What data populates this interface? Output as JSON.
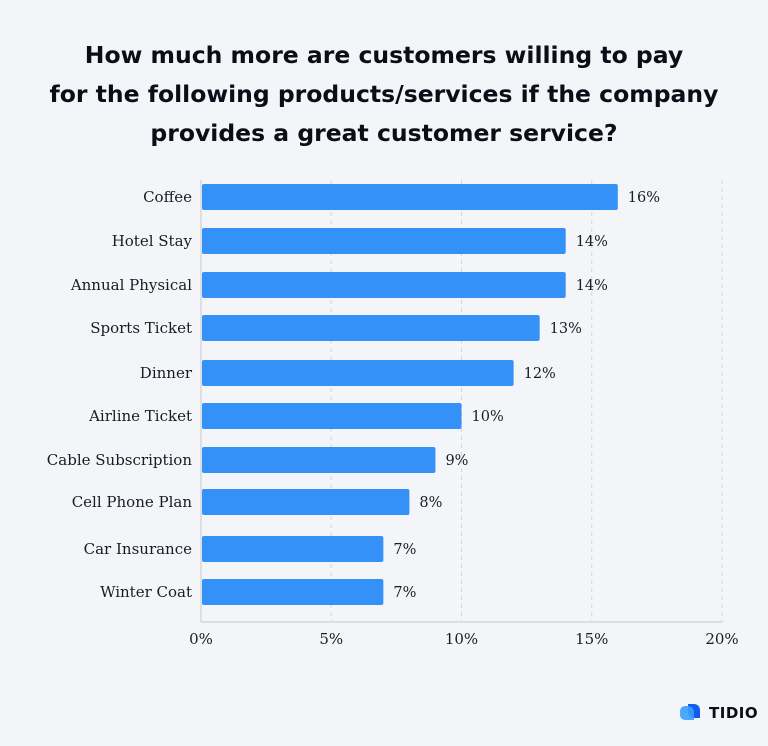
{
  "chart_data": {
    "type": "bar",
    "orientation": "horizontal",
    "title_lines": [
      "How much more are customers willing to pay",
      "for the following products/services if the company",
      "provides a great customer service?"
    ],
    "categories": [
      "Coffee",
      "Hotel Stay",
      "Annual Physical",
      "Sports Ticket",
      "Dinner",
      "Airline Ticket",
      "Cable Subscription",
      "Cell Phone Plan",
      "Car Insurance",
      "Winter Coat"
    ],
    "values": [
      16,
      14,
      14,
      13,
      12,
      10,
      9,
      8,
      7,
      7
    ],
    "data_labels": [
      "16%",
      "14%",
      "14%",
      "13%",
      "12%",
      "10%",
      "9%",
      "8%",
      "7%",
      "7%"
    ],
    "xlim": [
      0,
      20
    ],
    "x_ticks": [
      0,
      5,
      10,
      15,
      20
    ],
    "x_tick_labels": [
      "0%",
      "5%",
      "10%",
      "15%",
      "20%"
    ],
    "grid": "vertical dashed",
    "bar_color": "#3391f8",
    "background": "#f4f5f9"
  },
  "branding": {
    "logo_text": "TIDIO",
    "logo_color": "#0f6cf5"
  }
}
